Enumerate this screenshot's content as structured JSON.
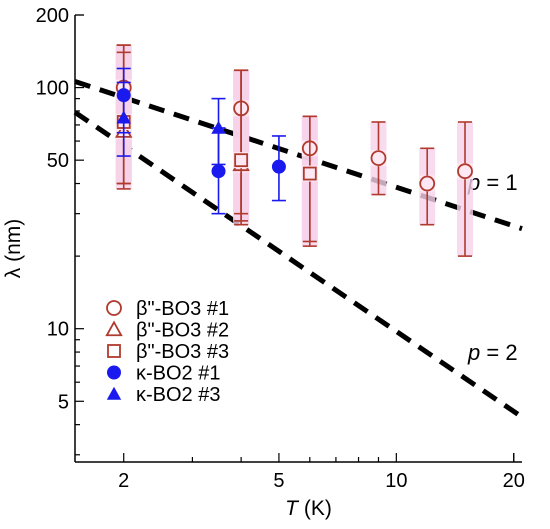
{
  "chart_data": {
    "type": "scatter",
    "title": "",
    "xlabel": "T (K)",
    "xlabel_italic": "T",
    "xlabel_unit": " (K)",
    "ylabel": "λ  (nm)",
    "xscale": "log",
    "yscale": "log",
    "xlim": [
      1.5,
      21
    ],
    "ylim": [
      2.8,
      200
    ],
    "xticks": [
      2,
      5,
      10,
      20
    ],
    "xtick_labels": [
      "2",
      "5",
      "10",
      "20"
    ],
    "yticks": [
      5,
      10,
      50,
      100,
      200
    ],
    "ytick_labels": [
      "5",
      "10",
      "50",
      "100",
      "200"
    ],
    "grid": false,
    "legend_position": "bottom-left",
    "series": [
      {
        "name": "β\"-BO3 #1",
        "marker": "circle-open",
        "color": "#b03a2e",
        "halo": "#f6d2ea",
        "points": [
          {
            "x": 2,
            "y": 100,
            "lo": 40,
            "hi": 150
          },
          {
            "x": 4,
            "y": 82,
            "lo": 30,
            "hi": 118
          },
          {
            "x": 6,
            "y": 56,
            "lo": 23,
            "hi": 76
          },
          {
            "x": 9,
            "y": 51,
            "lo": 36,
            "hi": 72
          },
          {
            "x": 12,
            "y": 40,
            "lo": 27,
            "hi": 56
          },
          {
            "x": 15,
            "y": 45,
            "lo": 20,
            "hi": 72
          }
        ]
      },
      {
        "name": "β\"-BO3 #2",
        "marker": "triangle-open",
        "color": "#b03a2e",
        "halo": "#f6d2ea",
        "points": [
          {
            "x": 2,
            "y": 66,
            "lo": 38,
            "hi": 140
          },
          {
            "x": 4,
            "y": 48,
            "lo": 27,
            "hi": 118
          }
        ]
      },
      {
        "name": "β\"-BO3 #3",
        "marker": "square-open",
        "color": "#b03a2e",
        "halo": "#f6d2ea",
        "points": [
          {
            "x": 2,
            "y": 72,
            "lo": 40,
            "hi": 150
          },
          {
            "x": 4,
            "y": 50,
            "lo": 28,
            "hi": 118
          },
          {
            "x": 6,
            "y": 44,
            "lo": 22,
            "hi": 76
          }
        ]
      },
      {
        "name": "κ-BO2 #1",
        "marker": "circle-filled",
        "color": "#1a1aee",
        "points": [
          {
            "x": 2,
            "y": 93,
            "lo": 65,
            "hi": 120
          },
          {
            "x": 3.5,
            "y": 45,
            "lo": 30,
            "hi": 68
          },
          {
            "x": 5,
            "y": 47,
            "lo": 34,
            "hi": 63
          }
        ]
      },
      {
        "name": "κ-BO2 #3",
        "marker": "triangle-filled",
        "color": "#1a1aee",
        "points": [
          {
            "x": 2,
            "y": 75,
            "lo": 52,
            "hi": 105
          },
          {
            "x": 3.5,
            "y": 68,
            "lo": 48,
            "hi": 90
          }
        ]
      }
    ],
    "fit_lines": [
      {
        "label_p": "p",
        "label_eq": " = 1",
        "x": [
          1.5,
          21
        ],
        "y": [
          106,
          26
        ]
      },
      {
        "label_p": "p",
        "label_eq": " = 2",
        "x": [
          1.5,
          21
        ],
        "y": [
          79,
          4.3
        ]
      }
    ]
  }
}
